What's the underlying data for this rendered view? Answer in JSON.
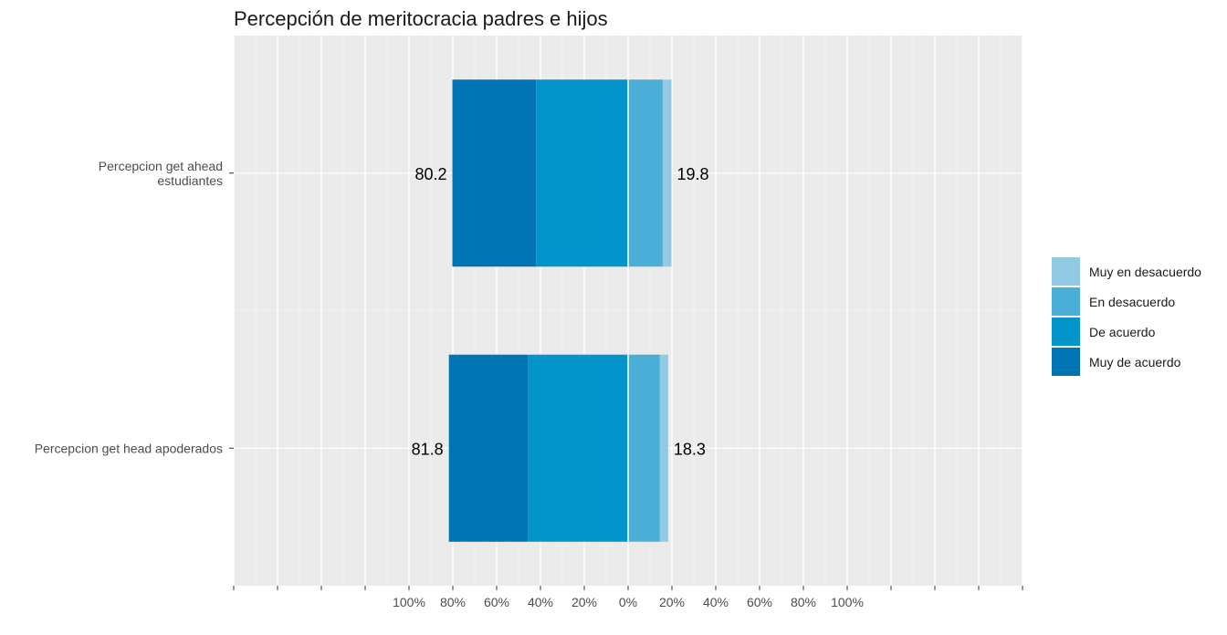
{
  "chart_data": {
    "type": "bar",
    "orientation": "horizontal",
    "stacking": "diverging",
    "title": "Percepción de meritocracia padres e hijos",
    "xlabel": "",
    "ylabel": "",
    "xlim": [
      -180,
      180
    ],
    "x_tick_labels": [
      "100%",
      "80%",
      "60%",
      "40%",
      "20%",
      "0%",
      "20%",
      "40%",
      "60%",
      "80%",
      "100%"
    ],
    "x_tick_values": [
      -100,
      -80,
      -60,
      -40,
      -20,
      0,
      20,
      40,
      60,
      80,
      100
    ],
    "categories": [
      "Percepcion get ahead\nestudiantes",
      "Percepcion get head apoderados"
    ],
    "series": [
      {
        "name": "Muy en desacuerdo",
        "side": "right",
        "color": "#92cae3",
        "values": [
          4.0,
          3.8
        ]
      },
      {
        "name": "En desacuerdo",
        "side": "right",
        "color": "#4aaed7",
        "values": [
          15.8,
          14.5
        ]
      },
      {
        "name": "De acuerdo",
        "side": "left",
        "color": "#0395c9",
        "values": [
          42.0,
          45.8
        ]
      },
      {
        "name": "Muy de acuerdo",
        "side": "left",
        "color": "#0074b3",
        "values": [
          38.2,
          36.0
        ]
      }
    ],
    "totals_left": [
      "80.2",
      "81.8"
    ],
    "totals_right": [
      "19.8",
      "18.3"
    ],
    "legend_position": "right",
    "grid": true
  }
}
